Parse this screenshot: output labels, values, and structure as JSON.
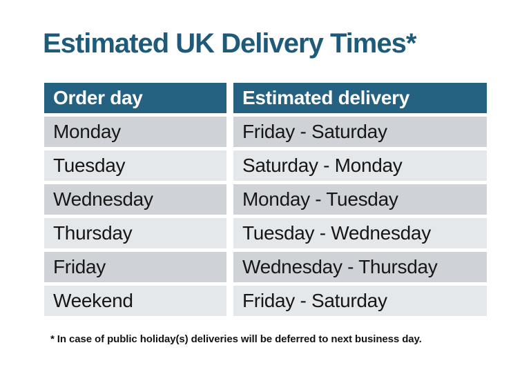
{
  "header": {
    "title": "Estimated UK Delivery Times*"
  },
  "table": {
    "columns": [
      "Order day",
      "Estimated delivery"
    ],
    "rows": [
      {
        "order_day": "Monday",
        "estimated_delivery": "Friday - Saturday"
      },
      {
        "order_day": "Tuesday",
        "estimated_delivery": "Saturday - Monday"
      },
      {
        "order_day": "Wednesday",
        "estimated_delivery": "Monday - Tuesday"
      },
      {
        "order_day": "Thursday",
        "estimated_delivery": "Tuesday - Wednesday"
      },
      {
        "order_day": "Friday",
        "estimated_delivery": "Wednesday - Thursday"
      },
      {
        "order_day": "Weekend",
        "estimated_delivery": "Friday - Saturday"
      }
    ]
  },
  "footnote": "* In case of public holiday(s) deliveries will be deferred to next business day.",
  "colors": {
    "title_text": "#1e5b7a",
    "header_bg": "#256180",
    "header_text": "#ffffff",
    "row_odd_bg": "#cfd3d8",
    "row_even_bg": "#e4e8eb",
    "body_text": "#161616"
  }
}
